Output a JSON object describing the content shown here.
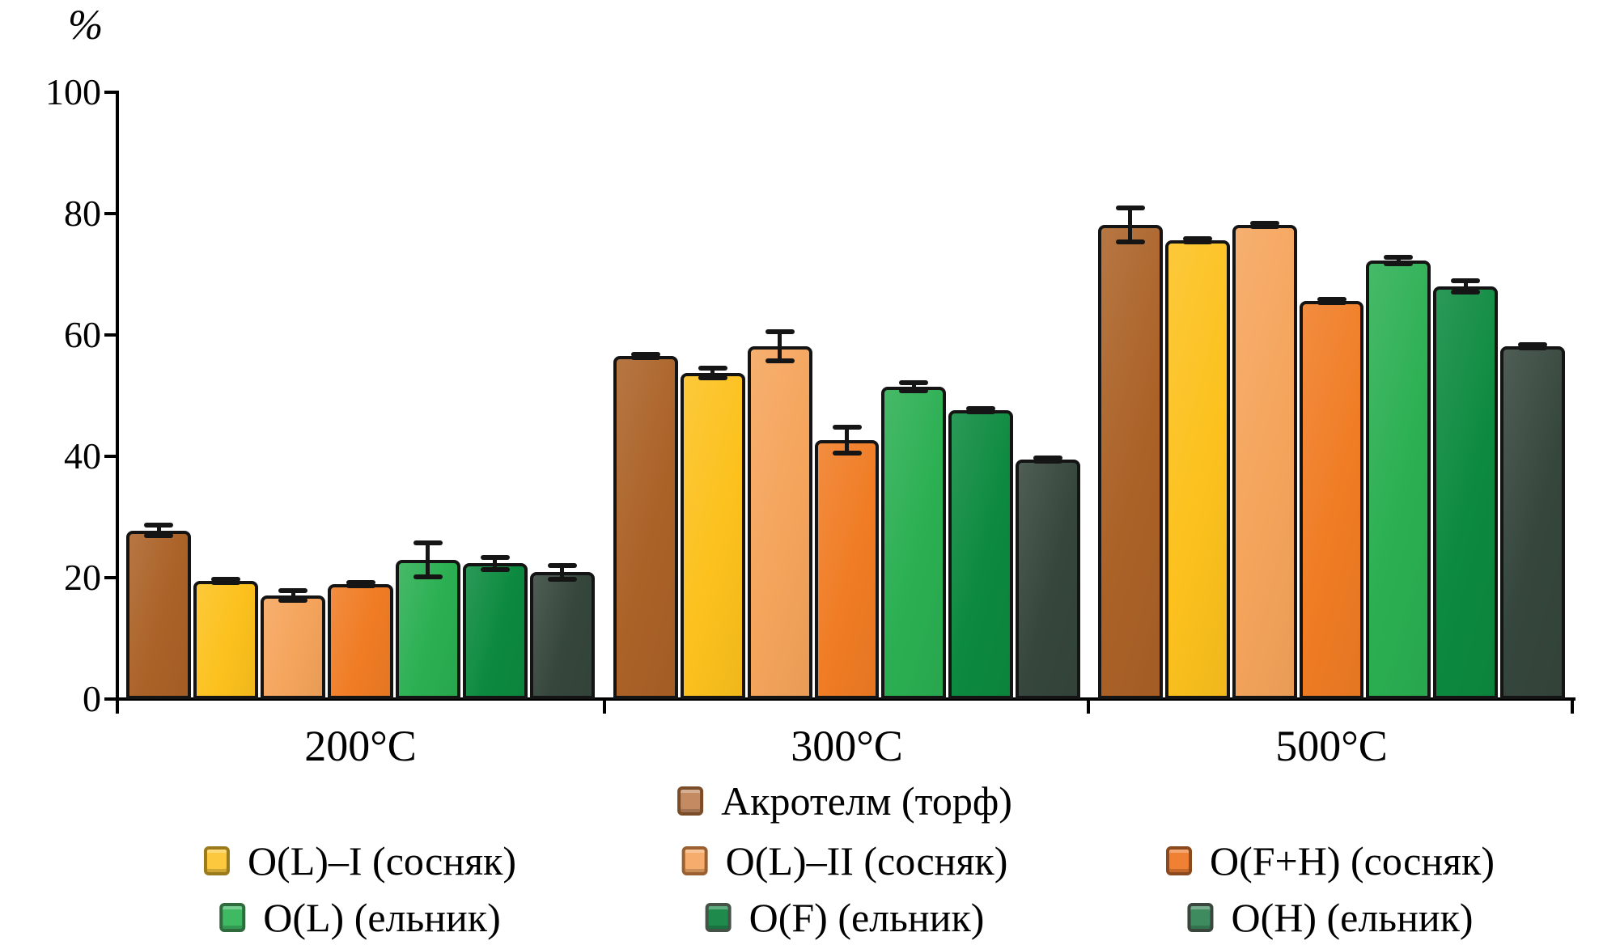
{
  "figure": {
    "y_unit": "%"
  },
  "chart_data": {
    "type": "bar",
    "title": "",
    "xlabel": "",
    "ylabel": "%",
    "grid": false,
    "error_bars": true,
    "y_axis": {
      "unit": "%",
      "min": 0,
      "max": 100,
      "tick_step": 20,
      "ticks": [
        0,
        20,
        40,
        60,
        80,
        100
      ]
    },
    "categories": [
      "200°C",
      "300°C",
      "500°C"
    ],
    "series": [
      {
        "name": "Акротелм (торф)",
        "color": "#AB6227",
        "swatch": "#C48B63",
        "swatch_border": "#7A4C28",
        "values": [
          27.8,
          56.6,
          78.2
        ],
        "errors": [
          1.3,
          0.4,
          3.2
        ]
      },
      {
        "name": "O(L)–I (сосняк)",
        "color": "#FCC11D",
        "swatch": "#FCC93E",
        "swatch_border": "#9A7A1A",
        "values": [
          19.5,
          53.7,
          75.6
        ],
        "errors": [
          0.5,
          1.2,
          0.4
        ]
      },
      {
        "name": "O(L)–II (сосняк)",
        "color": "#F5A45B",
        "swatch": "#F6AC6C",
        "swatch_border": "#9A6030",
        "values": [
          17.1,
          58.1,
          78.1
        ],
        "errors": [
          1.2,
          2.8,
          0.6
        ]
      },
      {
        "name": "O(F+H) (сосняк)",
        "color": "#F07C24",
        "swatch": "#F08134",
        "swatch_border": "#8A4A1E",
        "values": [
          18.9,
          42.7,
          65.6
        ],
        "errors": [
          0.5,
          2.5,
          0.4
        ]
      },
      {
        "name": "O(L) (ельник)",
        "color": "#2BAF52",
        "swatch": "#3FBA63",
        "swatch_border": "#2F6B3D",
        "values": [
          22.9,
          51.5,
          72.3
        ],
        "errors": [
          3.2,
          1.1,
          0.9
        ]
      },
      {
        "name": "O(F) (ельник)",
        "color": "#0C8A3F",
        "swatch": "#1E8A4C",
        "swatch_border": "#445248",
        "values": [
          22.4,
          47.6,
          68.0
        ],
        "errors": [
          1.4,
          0.35,
          1.3
        ]
      },
      {
        "name": "O(H) (ельник)",
        "color": "#35463C",
        "swatch": "#3E8B5F",
        "swatch_border": "#3A453E",
        "values": [
          20.9,
          39.5,
          58.2
        ],
        "errors": [
          1.5,
          0.5,
          0.35
        ]
      }
    ],
    "legend": {
      "position": "bottom",
      "rows": [
        [
          0
        ],
        [
          1,
          2,
          3
        ],
        [
          4,
          5,
          6
        ]
      ]
    }
  }
}
